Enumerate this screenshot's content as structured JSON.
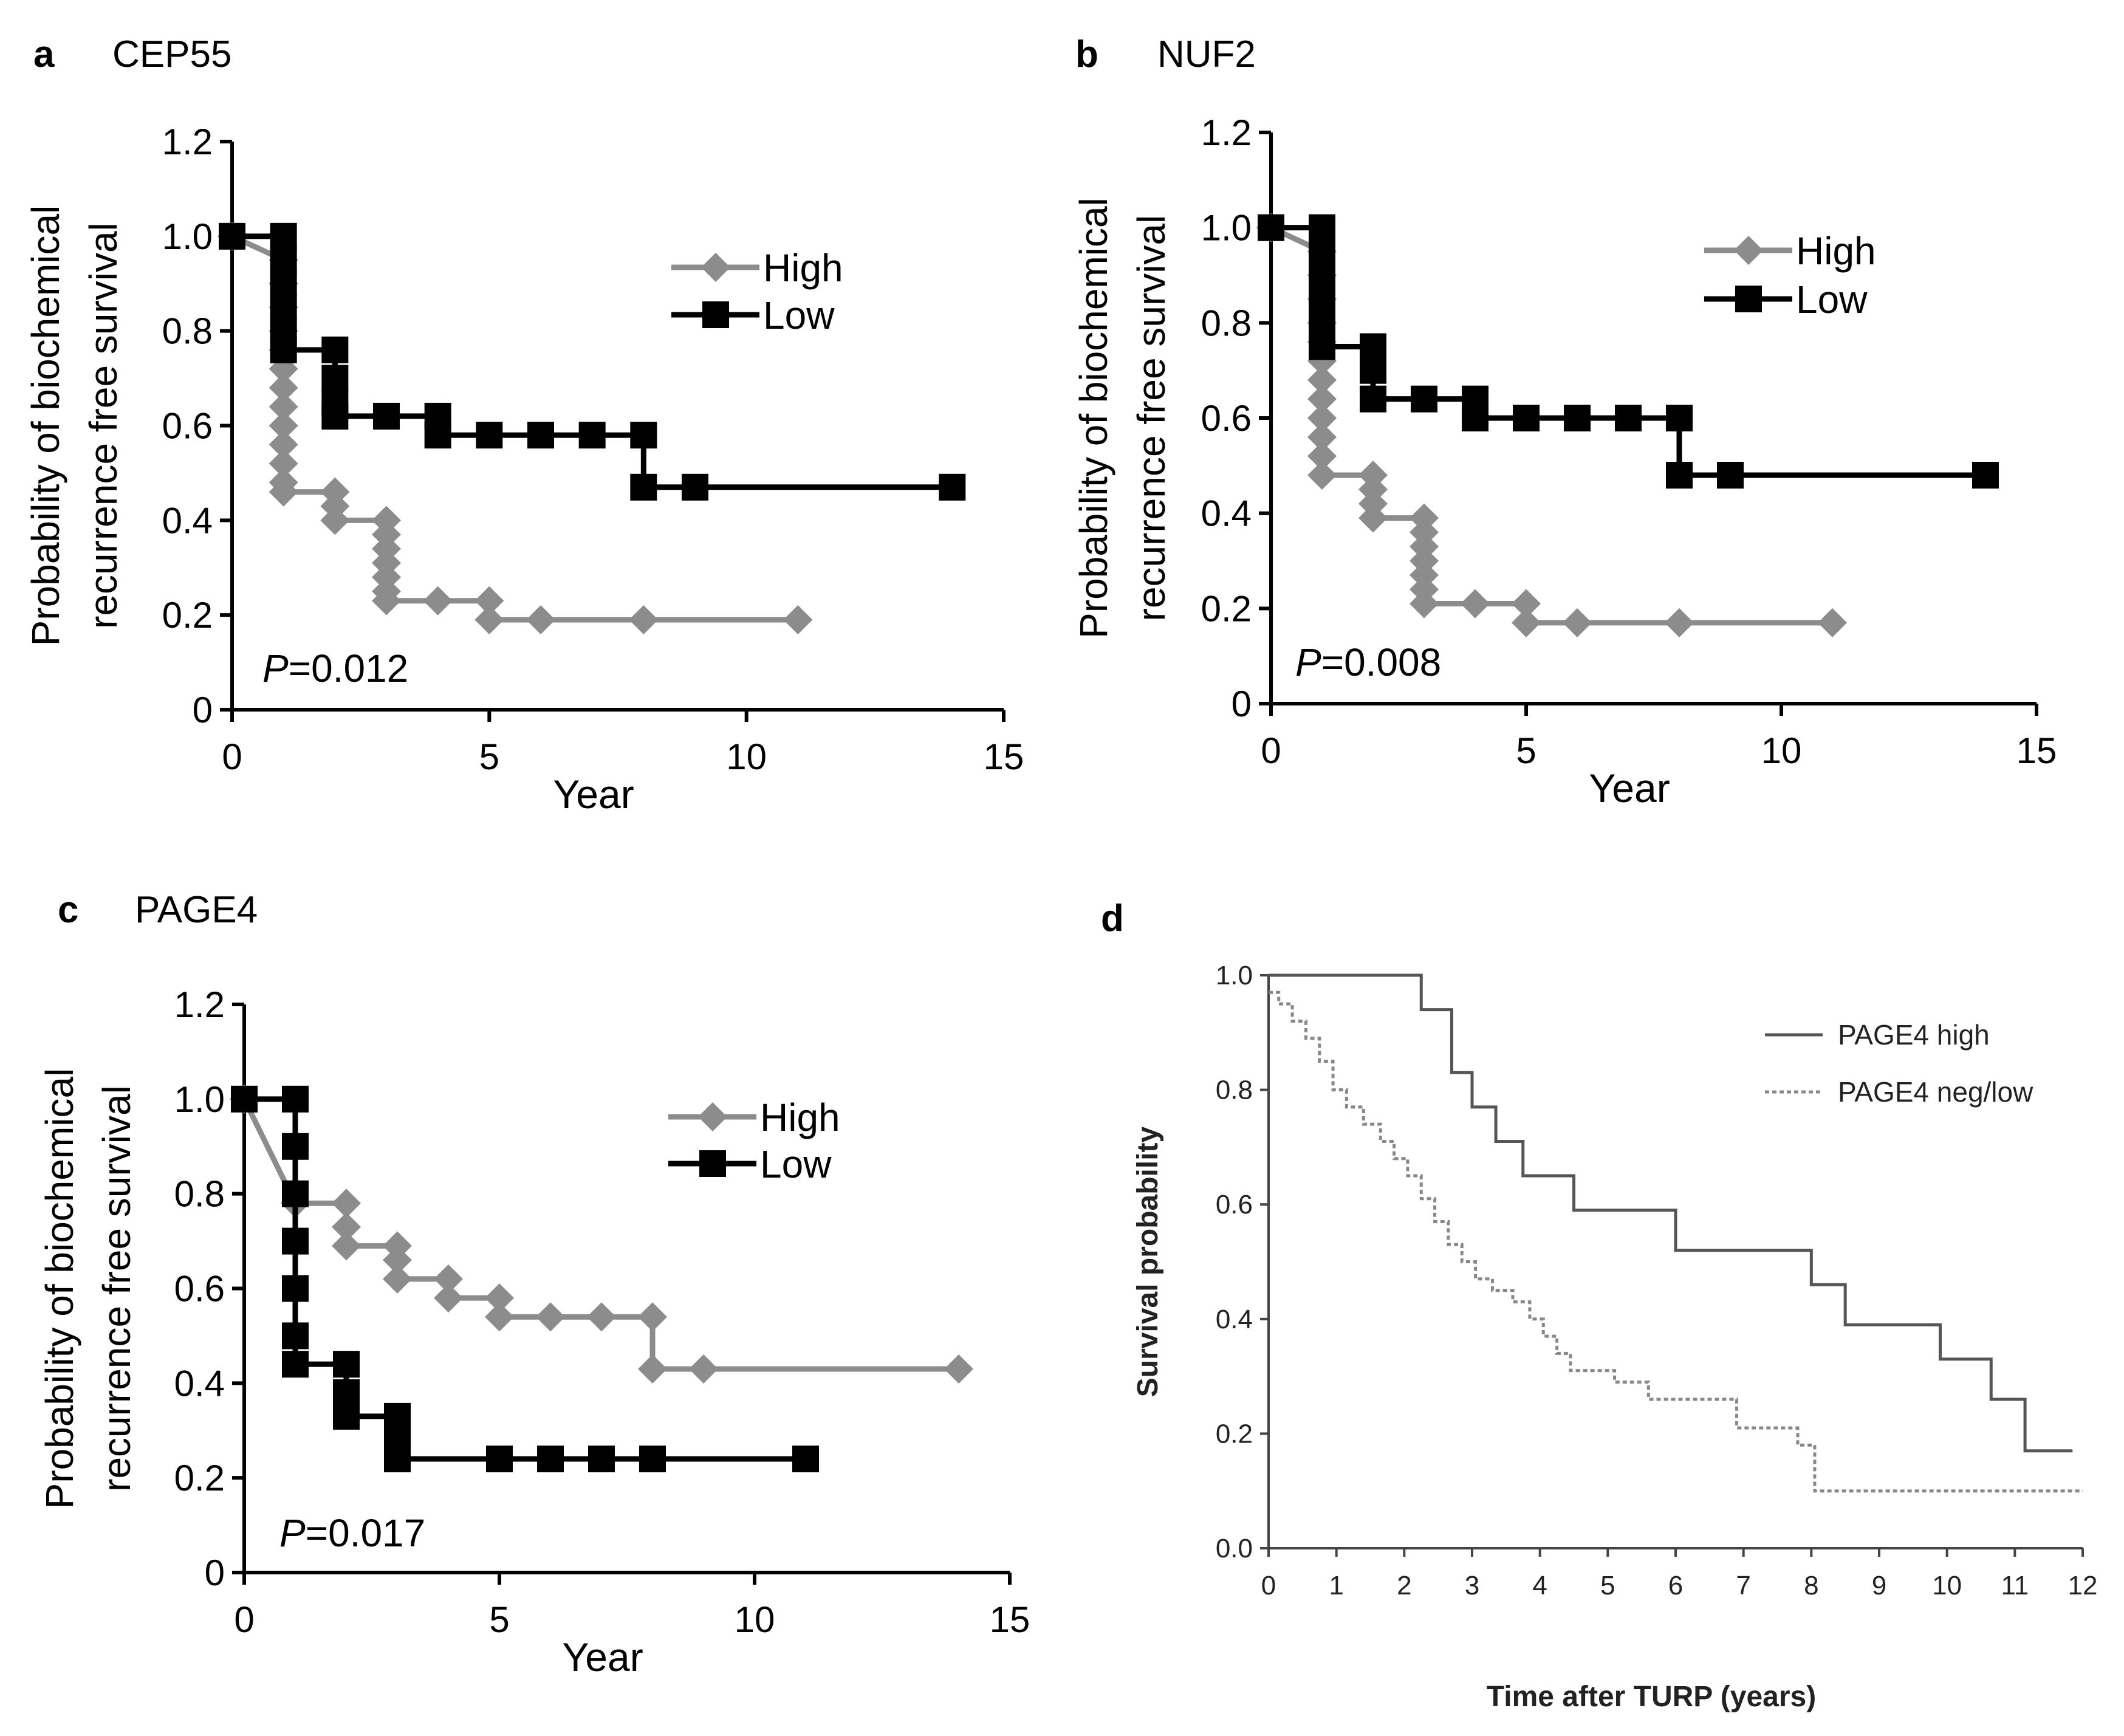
{
  "chart_data": [
    {
      "panel": "a",
      "type": "line",
      "title": "CEP55",
      "xlabel": "Year",
      "ylabel": "Probability of biochemical recurrence free survival",
      "ylabel_lines": [
        "Probability of biochemical",
        "recurrence free survival"
      ],
      "xlim": [
        0,
        15
      ],
      "ylim": [
        0,
        1.2
      ],
      "xticks": [
        "0",
        "5",
        "10",
        "15"
      ],
      "yticks": [
        "0",
        "0.2",
        "0.4",
        "0.6",
        "0.8",
        "1.0",
        "1.2"
      ],
      "p_label": "P",
      "p_value": "=0.012",
      "legend": [
        "High",
        "Low"
      ],
      "series": [
        {
          "name": "High",
          "color": "#8c8c8c",
          "marker": "diamond",
          "steps": [
            [
              0,
              1.0
            ],
            [
              1,
              0.95
            ],
            [
              1,
              0.9
            ],
            [
              1,
              0.85
            ],
            [
              1,
              0.8
            ],
            [
              1,
              0.76
            ],
            [
              1,
              0.72
            ],
            [
              1,
              0.68
            ],
            [
              1,
              0.64
            ],
            [
              1,
              0.6
            ],
            [
              1,
              0.56
            ],
            [
              1,
              0.52
            ],
            [
              1,
              0.48
            ],
            [
              1,
              0.46
            ],
            [
              2,
              0.46
            ],
            [
              2,
              0.43
            ],
            [
              2,
              0.4
            ],
            [
              3,
              0.4
            ],
            [
              3,
              0.37
            ],
            [
              3,
              0.34
            ],
            [
              3,
              0.31
            ],
            [
              3,
              0.28
            ],
            [
              3,
              0.25
            ],
            [
              3,
              0.23
            ],
            [
              4,
              0.23
            ],
            [
              5,
              0.23
            ],
            [
              5,
              0.19
            ],
            [
              6,
              0.19
            ],
            [
              8,
              0.19
            ],
            [
              11,
              0.19
            ]
          ]
        },
        {
          "name": "Low",
          "color": "#000000",
          "marker": "square",
          "steps": [
            [
              0,
              1.0
            ],
            [
              1,
              1.0
            ],
            [
              1,
              0.95
            ],
            [
              1,
              0.9
            ],
            [
              1,
              0.85
            ],
            [
              1,
              0.8
            ],
            [
              1,
              0.76
            ],
            [
              2,
              0.76
            ],
            [
              2,
              0.7
            ],
            [
              2,
              0.65
            ],
            [
              2,
              0.62
            ],
            [
              3,
              0.62
            ],
            [
              4,
              0.62
            ],
            [
              4,
              0.58
            ],
            [
              5,
              0.58
            ],
            [
              6,
              0.58
            ],
            [
              7,
              0.58
            ],
            [
              8,
              0.58
            ],
            [
              8,
              0.47
            ],
            [
              9,
              0.47
            ],
            [
              14,
              0.47
            ]
          ]
        }
      ]
    },
    {
      "panel": "b",
      "type": "line",
      "title": "NUF2",
      "xlabel": "Year",
      "ylabel": "Probability of biochemical recurrence free survival",
      "ylabel_lines": [
        "Probability of biochemical",
        "recurrence free survival"
      ],
      "xlim": [
        0,
        15
      ],
      "ylim": [
        0,
        1.2
      ],
      "xticks": [
        "0",
        "5",
        "10",
        "15"
      ],
      "yticks": [
        "0",
        "0.2",
        "0.4",
        "0.6",
        "0.8",
        "1.0",
        "1.2"
      ],
      "p_label": "P",
      "p_value": "=0.008",
      "legend": [
        "High",
        "Low"
      ],
      "series": [
        {
          "name": "High",
          "color": "#8c8c8c",
          "marker": "diamond",
          "steps": [
            [
              0,
              1.0
            ],
            [
              1,
              0.95
            ],
            [
              1,
              0.9
            ],
            [
              1,
              0.85
            ],
            [
              1,
              0.8
            ],
            [
              1,
              0.76
            ],
            [
              1,
              0.72
            ],
            [
              1,
              0.68
            ],
            [
              1,
              0.64
            ],
            [
              1,
              0.6
            ],
            [
              1,
              0.56
            ],
            [
              1,
              0.52
            ],
            [
              1,
              0.48
            ],
            [
              2,
              0.48
            ],
            [
              2,
              0.45
            ],
            [
              2,
              0.42
            ],
            [
              2,
              0.39
            ],
            [
              3,
              0.39
            ],
            [
              3,
              0.36
            ],
            [
              3,
              0.33
            ],
            [
              3,
              0.3
            ],
            [
              3,
              0.27
            ],
            [
              3,
              0.24
            ],
            [
              3,
              0.21
            ],
            [
              4,
              0.21
            ],
            [
              5,
              0.21
            ],
            [
              5,
              0.17
            ],
            [
              6,
              0.17
            ],
            [
              8,
              0.17
            ],
            [
              11,
              0.17
            ]
          ]
        },
        {
          "name": "Low",
          "color": "#000000",
          "marker": "square",
          "steps": [
            [
              0,
              1.0
            ],
            [
              1,
              1.0
            ],
            [
              1,
              0.95
            ],
            [
              1,
              0.9
            ],
            [
              1,
              0.85
            ],
            [
              1,
              0.8
            ],
            [
              1,
              0.75
            ],
            [
              2,
              0.75
            ],
            [
              2,
              0.7
            ],
            [
              2,
              0.64
            ],
            [
              3,
              0.64
            ],
            [
              4,
              0.64
            ],
            [
              4,
              0.6
            ],
            [
              5,
              0.6
            ],
            [
              6,
              0.6
            ],
            [
              7,
              0.6
            ],
            [
              8,
              0.6
            ],
            [
              8,
              0.48
            ],
            [
              9,
              0.48
            ],
            [
              14,
              0.48
            ]
          ]
        }
      ]
    },
    {
      "panel": "c",
      "type": "line",
      "title": "PAGE4",
      "xlabel": "Year",
      "ylabel": "Probability of biochemical recurrence free survival",
      "ylabel_lines": [
        "Probability of biochemical",
        "recurrence free survival"
      ],
      "xlim": [
        0,
        15
      ],
      "ylim": [
        0,
        1.2
      ],
      "xticks": [
        "0",
        "5",
        "10",
        "15"
      ],
      "yticks": [
        "0",
        "0.2",
        "0.4",
        "0.6",
        "0.8",
        "1.0",
        "1.2"
      ],
      "p_label": "P",
      "p_value": "=0.017",
      "legend": [
        "High",
        "Low"
      ],
      "series": [
        {
          "name": "High",
          "color": "#8c8c8c",
          "marker": "diamond",
          "steps": [
            [
              0,
              1.0
            ],
            [
              1,
              0.78
            ],
            [
              2,
              0.78
            ],
            [
              2,
              0.73
            ],
            [
              2,
              0.69
            ],
            [
              3,
              0.69
            ],
            [
              3,
              0.66
            ],
            [
              3,
              0.62
            ],
            [
              4,
              0.62
            ],
            [
              4,
              0.58
            ],
            [
              5,
              0.58
            ],
            [
              5,
              0.54
            ],
            [
              6,
              0.54
            ],
            [
              7,
              0.54
            ],
            [
              8,
              0.54
            ],
            [
              8,
              0.43
            ],
            [
              9,
              0.43
            ],
            [
              14,
              0.43
            ]
          ]
        },
        {
          "name": "Low",
          "color": "#000000",
          "marker": "square",
          "steps": [
            [
              0,
              1.0
            ],
            [
              1,
              1.0
            ],
            [
              1,
              0.9
            ],
            [
              1,
              0.8
            ],
            [
              1,
              0.7
            ],
            [
              1,
              0.6
            ],
            [
              1,
              0.5
            ],
            [
              1,
              0.44
            ],
            [
              2,
              0.44
            ],
            [
              2,
              0.38
            ],
            [
              2,
              0.33
            ],
            [
              3,
              0.33
            ],
            [
              3,
              0.28
            ],
            [
              3,
              0.24
            ],
            [
              5,
              0.24
            ],
            [
              6,
              0.24
            ],
            [
              7,
              0.24
            ],
            [
              8,
              0.24
            ],
            [
              11,
              0.24
            ]
          ]
        }
      ]
    },
    {
      "panel": "d",
      "type": "line",
      "title": "",
      "xlabel": "Time after TURP (years)",
      "ylabel": "Survival probability",
      "xlim": [
        0,
        12
      ],
      "ylim": [
        0,
        1.0
      ],
      "xticks": [
        "0",
        "1",
        "2",
        "3",
        "4",
        "5",
        "6",
        "7",
        "8",
        "9",
        "10",
        "11",
        "12"
      ],
      "yticks": [
        "0.0",
        "0.2",
        "0.4",
        "0.6",
        "0.8",
        "1.0"
      ],
      "legend": [
        "PAGE4 high",
        "PAGE4 neg/low"
      ],
      "series": [
        {
          "name": "PAGE4 high",
          "color": "#555555",
          "style": "solid",
          "steps": [
            [
              0,
              1.0
            ],
            [
              2.25,
              1.0
            ],
            [
              2.25,
              0.94
            ],
            [
              2.7,
              0.94
            ],
            [
              2.7,
              0.83
            ],
            [
              3.0,
              0.83
            ],
            [
              3.0,
              0.77
            ],
            [
              3.35,
              0.77
            ],
            [
              3.35,
              0.71
            ],
            [
              3.75,
              0.71
            ],
            [
              3.75,
              0.65
            ],
            [
              4.5,
              0.65
            ],
            [
              4.5,
              0.59
            ],
            [
              6.0,
              0.59
            ],
            [
              6.0,
              0.52
            ],
            [
              8.0,
              0.52
            ],
            [
              8.0,
              0.46
            ],
            [
              8.5,
              0.46
            ],
            [
              8.5,
              0.39
            ],
            [
              9.9,
              0.39
            ],
            [
              9.9,
              0.33
            ],
            [
              10.65,
              0.33
            ],
            [
              10.65,
              0.26
            ],
            [
              11.15,
              0.26
            ],
            [
              11.15,
              0.17
            ],
            [
              11.85,
              0.17
            ]
          ]
        },
        {
          "name": "PAGE4 neg/low",
          "color": "#888888",
          "style": "dotted",
          "steps": [
            [
              0,
              0.97
            ],
            [
              0.15,
              0.97
            ],
            [
              0.15,
              0.95
            ],
            [
              0.35,
              0.95
            ],
            [
              0.35,
              0.92
            ],
            [
              0.55,
              0.92
            ],
            [
              0.55,
              0.89
            ],
            [
              0.75,
              0.89
            ],
            [
              0.75,
              0.85
            ],
            [
              0.95,
              0.85
            ],
            [
              0.95,
              0.8
            ],
            [
              1.15,
              0.8
            ],
            [
              1.15,
              0.77
            ],
            [
              1.4,
              0.77
            ],
            [
              1.4,
              0.74
            ],
            [
              1.65,
              0.74
            ],
            [
              1.65,
              0.71
            ],
            [
              1.85,
              0.71
            ],
            [
              1.85,
              0.68
            ],
            [
              2.05,
              0.68
            ],
            [
              2.05,
              0.65
            ],
            [
              2.25,
              0.65
            ],
            [
              2.25,
              0.61
            ],
            [
              2.45,
              0.61
            ],
            [
              2.45,
              0.57
            ],
            [
              2.65,
              0.57
            ],
            [
              2.65,
              0.53
            ],
            [
              2.85,
              0.53
            ],
            [
              2.85,
              0.5
            ],
            [
              3.05,
              0.5
            ],
            [
              3.05,
              0.47
            ],
            [
              3.3,
              0.47
            ],
            [
              3.3,
              0.45
            ],
            [
              3.6,
              0.45
            ],
            [
              3.6,
              0.43
            ],
            [
              3.85,
              0.43
            ],
            [
              3.85,
              0.4
            ],
            [
              4.05,
              0.4
            ],
            [
              4.05,
              0.37
            ],
            [
              4.25,
              0.37
            ],
            [
              4.25,
              0.34
            ],
            [
              4.45,
              0.34
            ],
            [
              4.45,
              0.31
            ],
            [
              5.1,
              0.31
            ],
            [
              5.1,
              0.29
            ],
            [
              5.6,
              0.29
            ],
            [
              5.6,
              0.26
            ],
            [
              6.9,
              0.26
            ],
            [
              6.9,
              0.21
            ],
            [
              7.8,
              0.21
            ],
            [
              7.8,
              0.18
            ],
            [
              8.05,
              0.18
            ],
            [
              8.05,
              0.1
            ],
            [
              12,
              0.1
            ]
          ]
        }
      ]
    }
  ]
}
